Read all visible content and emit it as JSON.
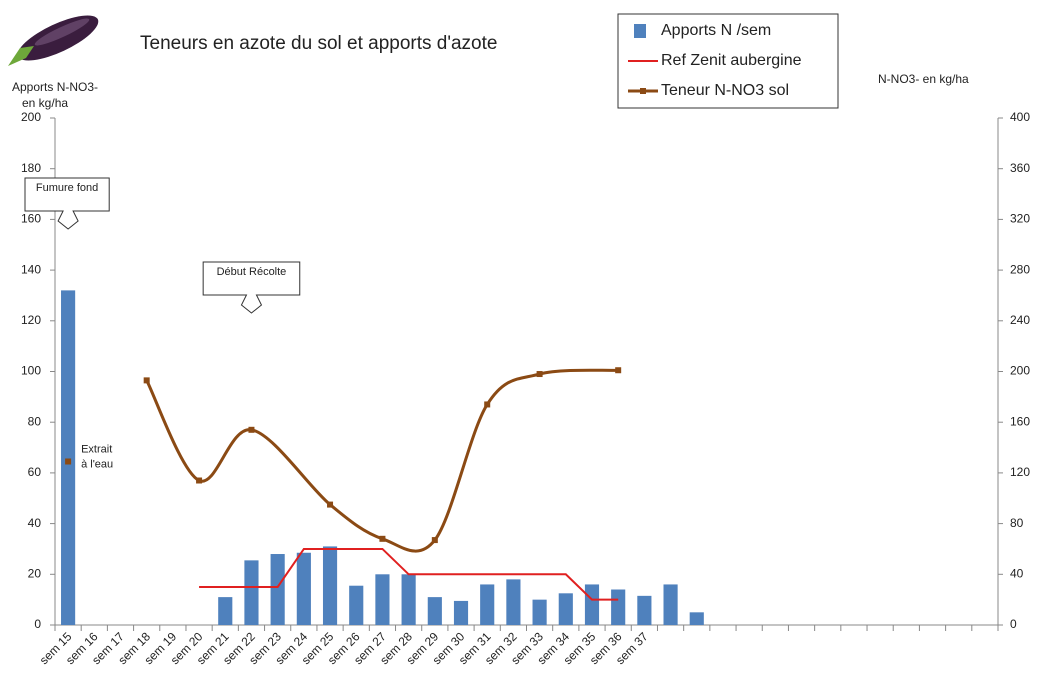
{
  "chart_data": {
    "type": "bar",
    "title": "Teneurs en azote du sol et apports d'azote",
    "y_label": [
      "Apports  N-NO3-",
      "en kg/ha"
    ],
    "y2_label": "N-NO3- en kg/ha",
    "categories": [
      "sem 15",
      "sem 16",
      "sem 17",
      "sem 18",
      "sem 19",
      "sem 20",
      "sem 21",
      "sem 22",
      "sem 23",
      "sem 24",
      "sem 25",
      "sem 26",
      "sem 27",
      "sem 28",
      "sem 29",
      "sem 30",
      "sem 31",
      "sem 32",
      "sem 33",
      "sem 34",
      "sem 35",
      "sem 36",
      "sem 37",
      null,
      null,
      null,
      null,
      null,
      null,
      null,
      null,
      null,
      null,
      null,
      null,
      null
    ],
    "ylim": [
      0,
      200
    ],
    "yticks": [
      0,
      20,
      40,
      60,
      80,
      100,
      120,
      140,
      160,
      180,
      200
    ],
    "y2lim": [
      0,
      400
    ],
    "y2ticks": [
      0,
      40,
      80,
      120,
      160,
      200,
      240,
      280,
      320,
      360,
      400
    ],
    "series": [
      {
        "name": "Apports N /sem",
        "type": "bar",
        "color": "#4f81bd",
        "values": [
          132,
          null,
          null,
          null,
          null,
          null,
          11,
          25.5,
          28,
          28.5,
          31,
          15.5,
          20,
          20,
          11,
          9.5,
          16,
          18,
          10,
          12.5,
          16,
          14,
          11.5,
          16,
          5,
          null,
          null,
          null,
          null,
          null,
          null,
          null,
          null,
          null,
          null,
          null
        ]
      },
      {
        "name": "Ref Zenit aubergine",
        "type": "line",
        "axis": "y2",
        "color": "#e02020",
        "values": [
          null,
          null,
          null,
          null,
          null,
          30,
          30,
          30,
          30,
          60,
          60,
          60,
          60,
          40,
          40,
          40,
          40,
          40,
          40,
          40,
          20,
          20,
          null,
          null,
          null,
          null,
          null,
          null,
          null,
          null,
          null,
          null,
          null,
          null,
          null,
          null
        ]
      },
      {
        "name": "Teneur N-NO3 sol",
        "type": "line",
        "axis": "y2",
        "color": "#8b4a14",
        "smooth": true,
        "span_gaps": true,
        "marker": "square",
        "values": [
          null,
          null,
          null,
          193,
          null,
          114,
          null,
          154,
          null,
          null,
          95,
          null,
          68,
          null,
          67,
          null,
          174,
          null,
          198,
          null,
          null,
          201,
          null,
          null,
          null,
          null,
          null,
          null,
          null,
          null,
          null,
          null,
          null,
          null,
          null,
          null
        ]
      }
    ],
    "points": [
      {
        "label": "Extrait à l'eau",
        "category": "sem 15",
        "value": 129,
        "axis": "y2",
        "color": "#8b4a14"
      }
    ],
    "callouts": [
      {
        "text": "Fumure fond",
        "category": "sem 15"
      },
      {
        "text": "Début Récolte",
        "category": "sem 22"
      }
    ],
    "legend": "top-right"
  }
}
